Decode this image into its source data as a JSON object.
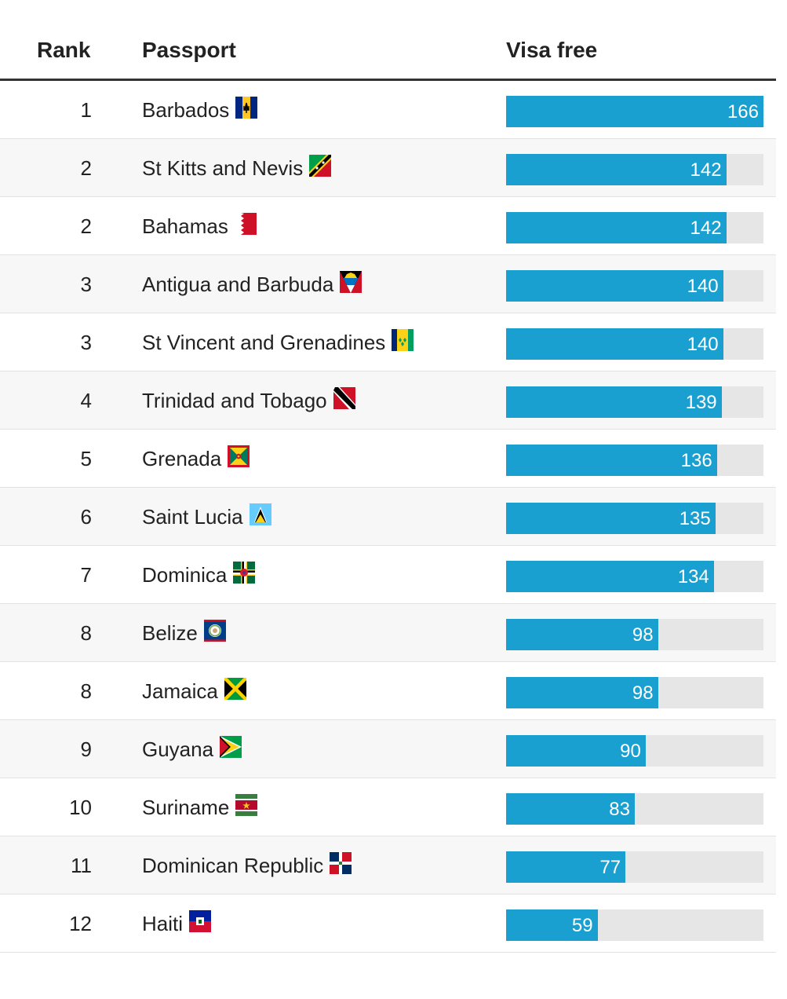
{
  "chart_data": {
    "type": "table",
    "headers": {
      "rank": "Rank",
      "passport": "Passport",
      "visa_free": "Visa free"
    },
    "xlim": [
      0,
      166
    ],
    "colors": {
      "bar": "#1aa0d0",
      "track": "#e6e6e6"
    },
    "rows": [
      {
        "rank": "1",
        "passport": "Barbados",
        "value": 166,
        "flag": "barbados-flag-icon"
      },
      {
        "rank": "2",
        "passport": "St Kitts and Nevis",
        "value": 142,
        "flag": "st-kitts-nevis-flag-icon"
      },
      {
        "rank": "2",
        "passport": "Bahamas",
        "value": 142,
        "flag": "bahamas-flag-icon"
      },
      {
        "rank": "3",
        "passport": "Antigua and Barbuda",
        "value": 140,
        "flag": "antigua-barbuda-flag-icon"
      },
      {
        "rank": "3",
        "passport": "St Vincent and Grenadines",
        "value": 140,
        "flag": "st-vincent-grenadines-flag-icon"
      },
      {
        "rank": "4",
        "passport": "Trinidad and Tobago",
        "value": 139,
        "flag": "trinidad-tobago-flag-icon"
      },
      {
        "rank": "5",
        "passport": "Grenada",
        "value": 136,
        "flag": "grenada-flag-icon"
      },
      {
        "rank": "6",
        "passport": "Saint Lucia",
        "value": 135,
        "flag": "saint-lucia-flag-icon"
      },
      {
        "rank": "7",
        "passport": "Dominica",
        "value": 134,
        "flag": "dominica-flag-icon"
      },
      {
        "rank": "8",
        "passport": "Belize",
        "value": 98,
        "flag": "belize-flag-icon"
      },
      {
        "rank": "8",
        "passport": "Jamaica",
        "value": 98,
        "flag": "jamaica-flag-icon"
      },
      {
        "rank": "9",
        "passport": "Guyana",
        "value": 90,
        "flag": "guyana-flag-icon"
      },
      {
        "rank": "10",
        "passport": "Suriname",
        "value": 83,
        "flag": "suriname-flag-icon"
      },
      {
        "rank": "11",
        "passport": "Dominican Republic",
        "value": 77,
        "flag": "dominican-republic-flag-icon"
      },
      {
        "rank": "12",
        "passport": "Haiti",
        "value": 59,
        "flag": "haiti-flag-icon"
      }
    ]
  }
}
